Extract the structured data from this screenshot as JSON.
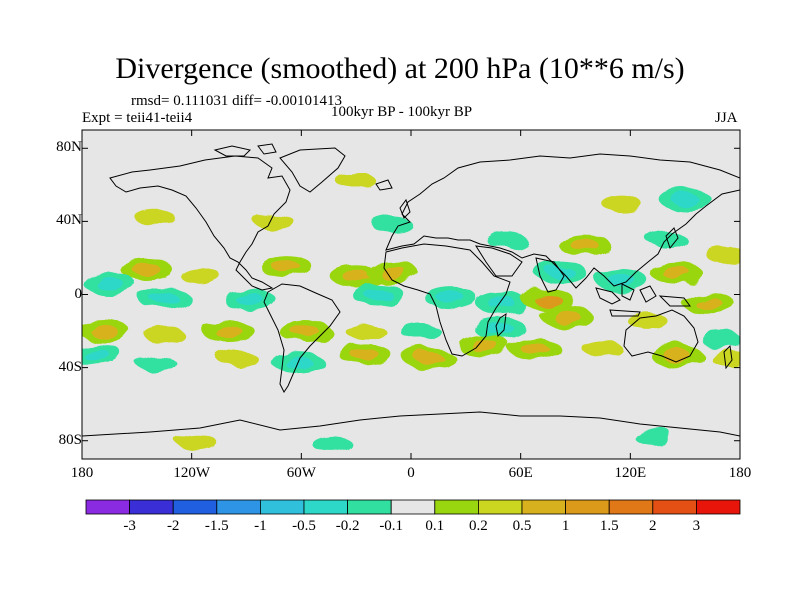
{
  "figure": {
    "title": "Divergence (smoothed) at 200 hPa (10**6 m/s)",
    "stats_text": "rmsd= 0.111031 diff= -0.00101413",
    "left_subtitle": "Expt = teii41-teii4",
    "center_subtitle": "100kyr BP - 100kyr BP",
    "right_subtitle": "JJA"
  },
  "map": {
    "projection": "cylindrical-equidistant",
    "lon_range": [
      -180,
      180
    ],
    "lat_range": [
      -90,
      90
    ],
    "background_color": "#e6e6e6",
    "coastline_color": "#000000",
    "lat_ticks": [
      {
        "value": 80,
        "label": "80N"
      },
      {
        "value": 40,
        "label": "40N"
      },
      {
        "value": 0,
        "label": "0"
      },
      {
        "value": -40,
        "label": "40S"
      },
      {
        "value": -80,
        "label": "80S"
      }
    ],
    "lon_ticks": [
      {
        "value": -180,
        "label": "180"
      },
      {
        "value": -120,
        "label": "120W"
      },
      {
        "value": -60,
        "label": "60W"
      },
      {
        "value": 0,
        "label": "0"
      },
      {
        "value": 60,
        "label": "60E"
      },
      {
        "value": 120,
        "label": "120E"
      },
      {
        "value": 180,
        "label": "180"
      }
    ]
  },
  "colorbar": {
    "colors": [
      "#8a2be2",
      "#3a2fd6",
      "#1f5fe0",
      "#2e95e6",
      "#30c0dc",
      "#2ed8c8",
      "#31e0a0",
      "#e6e6e6",
      "#9ad60f",
      "#cbd620",
      "#d8b21e",
      "#dc9a1a",
      "#e07818",
      "#e44f14",
      "#e8160a"
    ],
    "labels": [
      "-3",
      "-2",
      "-1.5",
      "-1",
      "-0.5",
      "-0.2",
      "-0.1",
      "0.1",
      "0.2",
      "0.5",
      "1",
      "1.5",
      "2",
      "3"
    ]
  },
  "chart_data": {
    "type": "heatmap",
    "title": "Divergence (smoothed) at 200 hPa (10**6 m/s)",
    "units": "10**6 m/s",
    "levels": [
      -3,
      -2,
      -1.5,
      -1,
      -0.5,
      -0.2,
      -0.1,
      0.1,
      0.2,
      0.5,
      1,
      1.5,
      2,
      3
    ],
    "rmsd": 0.111031,
    "diff": -0.00101413,
    "season": "JJA",
    "anomaly_features": [
      {
        "lon": -30,
        "lat": 62,
        "value": 0.2
      },
      {
        "lon": 115,
        "lat": 50,
        "value": 0.2
      },
      {
        "lon": -75,
        "lat": 40,
        "value": 0.2
      },
      {
        "lon": -140,
        "lat": 42,
        "value": 0.2
      },
      {
        "lon": -10,
        "lat": 38,
        "value": -0.2
      },
      {
        "lon": 52,
        "lat": 30,
        "value": -0.2
      },
      {
        "lon": 95,
        "lat": 27,
        "value": 0.5
      },
      {
        "lon": 140,
        "lat": 30,
        "value": -0.2
      },
      {
        "lon": 150,
        "lat": 52,
        "value": -0.5
      },
      {
        "lon": 145,
        "lat": 12,
        "value": 0.5
      },
      {
        "lon": 172,
        "lat": 22,
        "value": 0.2
      },
      {
        "lon": -145,
        "lat": 14,
        "value": 0.5
      },
      {
        "lon": -115,
        "lat": 10,
        "value": 0.2
      },
      {
        "lon": -68,
        "lat": 15,
        "value": 0.5
      },
      {
        "lon": -30,
        "lat": 10,
        "value": 0.5
      },
      {
        "lon": -10,
        "lat": 12,
        "value": 0.5
      },
      {
        "lon": -165,
        "lat": 6,
        "value": -0.5
      },
      {
        "lon": -135,
        "lat": -2,
        "value": -0.5
      },
      {
        "lon": -88,
        "lat": -3,
        "value": -0.5
      },
      {
        "lon": -18,
        "lat": 0,
        "value": -0.5
      },
      {
        "lon": 22,
        "lat": -2,
        "value": -0.5
      },
      {
        "lon": 50,
        "lat": -5,
        "value": -0.5
      },
      {
        "lon": 82,
        "lat": 12,
        "value": -0.5
      },
      {
        "lon": 115,
        "lat": 8,
        "value": -0.5
      },
      {
        "lon": 75,
        "lat": -3,
        "value": 1
      },
      {
        "lon": 162,
        "lat": -4,
        "value": 0.5
      },
      {
        "lon": -168,
        "lat": -20,
        "value": 0.5
      },
      {
        "lon": -135,
        "lat": -22,
        "value": 0.2
      },
      {
        "lon": -100,
        "lat": -20,
        "value": 0.5
      },
      {
        "lon": -58,
        "lat": -20,
        "value": 0.5
      },
      {
        "lon": -25,
        "lat": -20,
        "value": 0.2
      },
      {
        "lon": 5,
        "lat": -20,
        "value": -0.2
      },
      {
        "lon": 48,
        "lat": -18,
        "value": -0.5
      },
      {
        "lon": 85,
        "lat": -12,
        "value": 0.5
      },
      {
        "lon": 130,
        "lat": -15,
        "value": 0.2
      },
      {
        "lon": 170,
        "lat": -25,
        "value": -0.2
      },
      {
        "lon": -172,
        "lat": -33,
        "value": -0.5
      },
      {
        "lon": -140,
        "lat": -37,
        "value": -0.2
      },
      {
        "lon": -95,
        "lat": -35,
        "value": 0.2
      },
      {
        "lon": -62,
        "lat": -37,
        "value": -0.5
      },
      {
        "lon": -25,
        "lat": -33,
        "value": 0.5
      },
      {
        "lon": 10,
        "lat": -35,
        "value": 0.5
      },
      {
        "lon": 40,
        "lat": -28,
        "value": 0.5
      },
      {
        "lon": 68,
        "lat": -30,
        "value": 0.5
      },
      {
        "lon": 105,
        "lat": -30,
        "value": 0.2
      },
      {
        "lon": 145,
        "lat": -33,
        "value": 0.5
      },
      {
        "lon": 175,
        "lat": -35,
        "value": 0.2
      },
      {
        "lon": -118,
        "lat": -80,
        "value": 0.2
      },
      {
        "lon": -43,
        "lat": -82,
        "value": -0.2
      },
      {
        "lon": 132,
        "lat": -77,
        "value": -0.2
      }
    ]
  }
}
